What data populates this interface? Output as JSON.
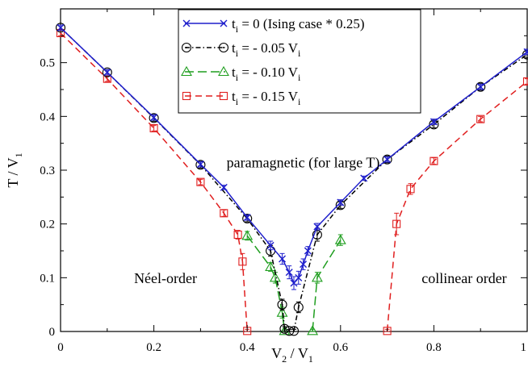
{
  "chart_data": {
    "type": "line",
    "xlabel": {
      "main": "V",
      "sub1": "2",
      "mid": " / V",
      "sub2": "1"
    },
    "ylabel": {
      "main": "T / V",
      "sub": "1"
    },
    "xlim": [
      0,
      1
    ],
    "ylim": [
      0,
      0.6
    ],
    "xticks": [
      {
        "v": 0,
        "label": "0"
      },
      {
        "v": 0.2,
        "label": "0.2"
      },
      {
        "v": 0.4,
        "label": "0.4"
      },
      {
        "v": 0.6,
        "label": "0.6"
      },
      {
        "v": 0.8,
        "label": "0.8"
      },
      {
        "v": 1.0,
        "label": "1"
      }
    ],
    "yticks": [
      {
        "v": 0,
        "label": "0"
      },
      {
        "v": 0.1,
        "label": "0.1"
      },
      {
        "v": 0.2,
        "label": "0.2"
      },
      {
        "v": 0.3,
        "label": "0.3"
      },
      {
        "v": 0.4,
        "label": "0.4"
      },
      {
        "v": 0.5,
        "label": "0.5"
      }
    ],
    "grid": false,
    "legend_position": "top-center",
    "annotations": [
      {
        "text": "paramagnetic (for large T)",
        "x": 0.52,
        "y": 0.305
      },
      {
        "text": "Néel-order",
        "x": 0.225,
        "y": 0.09
      },
      {
        "text": "collinear order",
        "x": 0.865,
        "y": 0.09
      }
    ],
    "series": [
      {
        "legend": {
          "t": "t",
          "sub": "i",
          "rest": " = 0 (Ising case * 0.25)",
          "vsub": ""
        },
        "color": "#1f1fcc",
        "marker": "x",
        "dash": "",
        "segments": [
          [
            [
              0,
              0.565
            ],
            [
              0.1,
              0.482
            ],
            [
              0.2,
              0.398
            ],
            [
              0.3,
              0.311
            ],
            [
              0.35,
              0.268
            ],
            [
              0.4,
              0.212
            ],
            [
              0.45,
              0.16
            ],
            [
              0.475,
              0.135
            ],
            [
              0.49,
              0.11
            ],
            [
              0.5,
              0.09
            ],
            [
              0.51,
              0.1
            ],
            [
              0.52,
              0.125
            ],
            [
              0.53,
              0.15
            ],
            [
              0.55,
              0.195
            ],
            [
              0.6,
              0.24
            ],
            [
              0.65,
              0.285
            ],
            [
              0.7,
              0.32
            ],
            [
              0.8,
              0.39
            ],
            [
              0.9,
              0.455
            ],
            [
              1.0,
              0.52
            ]
          ]
        ],
        "errors": [
          0.005,
          0.005,
          0.005,
          0.005,
          0.004,
          0.005,
          0.008,
          0.01,
          0.012,
          0.012,
          0.012,
          0.01,
          0.008,
          0.006,
          0.005,
          0.004,
          0.005,
          0.005,
          0.005,
          0.005
        ]
      },
      {
        "legend": {
          "t": "t",
          "sub": "i",
          "rest": " = - 0.05 V",
          "vsub": "i"
        },
        "color": "#000000",
        "marker": "circle",
        "dash": "6,3,1.5,3",
        "segments": [
          [
            [
              0,
              0.565
            ],
            [
              0.1,
              0.482
            ],
            [
              0.2,
              0.397
            ],
            [
              0.3,
              0.31
            ],
            [
              0.4,
              0.21
            ],
            [
              0.45,
              0.15
            ],
            [
              0.475,
              0.05
            ],
            [
              0.48,
              0.005
            ],
            [
              0.49,
              0.001
            ]
          ],
          [
            [
              0.5,
              0.001
            ],
            [
              0.51,
              0.045
            ],
            [
              0.55,
              0.18
            ],
            [
              0.6,
              0.235
            ],
            [
              0.7,
              0.32
            ],
            [
              0.8,
              0.385
            ],
            [
              0.9,
              0.455
            ],
            [
              1.0,
              0.515
            ]
          ]
        ],
        "errors": [
          0.005,
          0.005,
          0.006,
          0.006,
          0.006,
          0.01,
          0.01,
          0.004,
          0.003,
          0.003,
          0.01,
          0.012,
          0.006,
          0.006,
          0.006,
          0.006,
          0.006
        ]
      },
      {
        "legend": {
          "t": "t",
          "sub": "i",
          "rest": " = - 0.10 V",
          "vsub": "i"
        },
        "color": "#1f9e1f",
        "marker": "triangle",
        "dash": "11,5",
        "segments": [
          [
            [
              0.4,
              0.178
            ],
            [
              0.45,
              0.12
            ],
            [
              0.46,
              0.1
            ],
            [
              0.475,
              0.035
            ],
            [
              0.48,
              0.001
            ]
          ],
          [
            [
              0.54,
              0.001
            ],
            [
              0.55,
              0.1
            ],
            [
              0.6,
              0.17
            ]
          ]
        ],
        "errors": [
          0.008,
          0.008,
          0.01,
          0.01,
          0.003,
          0.003,
          0.01,
          0.01
        ]
      },
      {
        "legend": {
          "t": "t",
          "sub": "i",
          "rest": " = - 0.15 V",
          "vsub": "i"
        },
        "color": "#e01f1f",
        "marker": "square",
        "dash": "8,5",
        "segments": [
          [
            [
              0,
              0.555
            ],
            [
              0.1,
              0.47
            ],
            [
              0.2,
              0.378
            ],
            [
              0.3,
              0.278
            ],
            [
              0.35,
              0.22
            ],
            [
              0.38,
              0.18
            ],
            [
              0.39,
              0.13
            ],
            [
              0.4,
              0.001
            ]
          ],
          [
            [
              0.7,
              0.001
            ],
            [
              0.72,
              0.2
            ],
            [
              0.75,
              0.265
            ],
            [
              0.8,
              0.317
            ],
            [
              0.9,
              0.395
            ],
            [
              1.0,
              0.465
            ]
          ]
        ],
        "errors": [
          0.005,
          0.005,
          0.005,
          0.005,
          0.006,
          0.008,
          0.015,
          0.003,
          0.003,
          0.02,
          0.01,
          0.006,
          0.005,
          0.005
        ]
      }
    ]
  }
}
